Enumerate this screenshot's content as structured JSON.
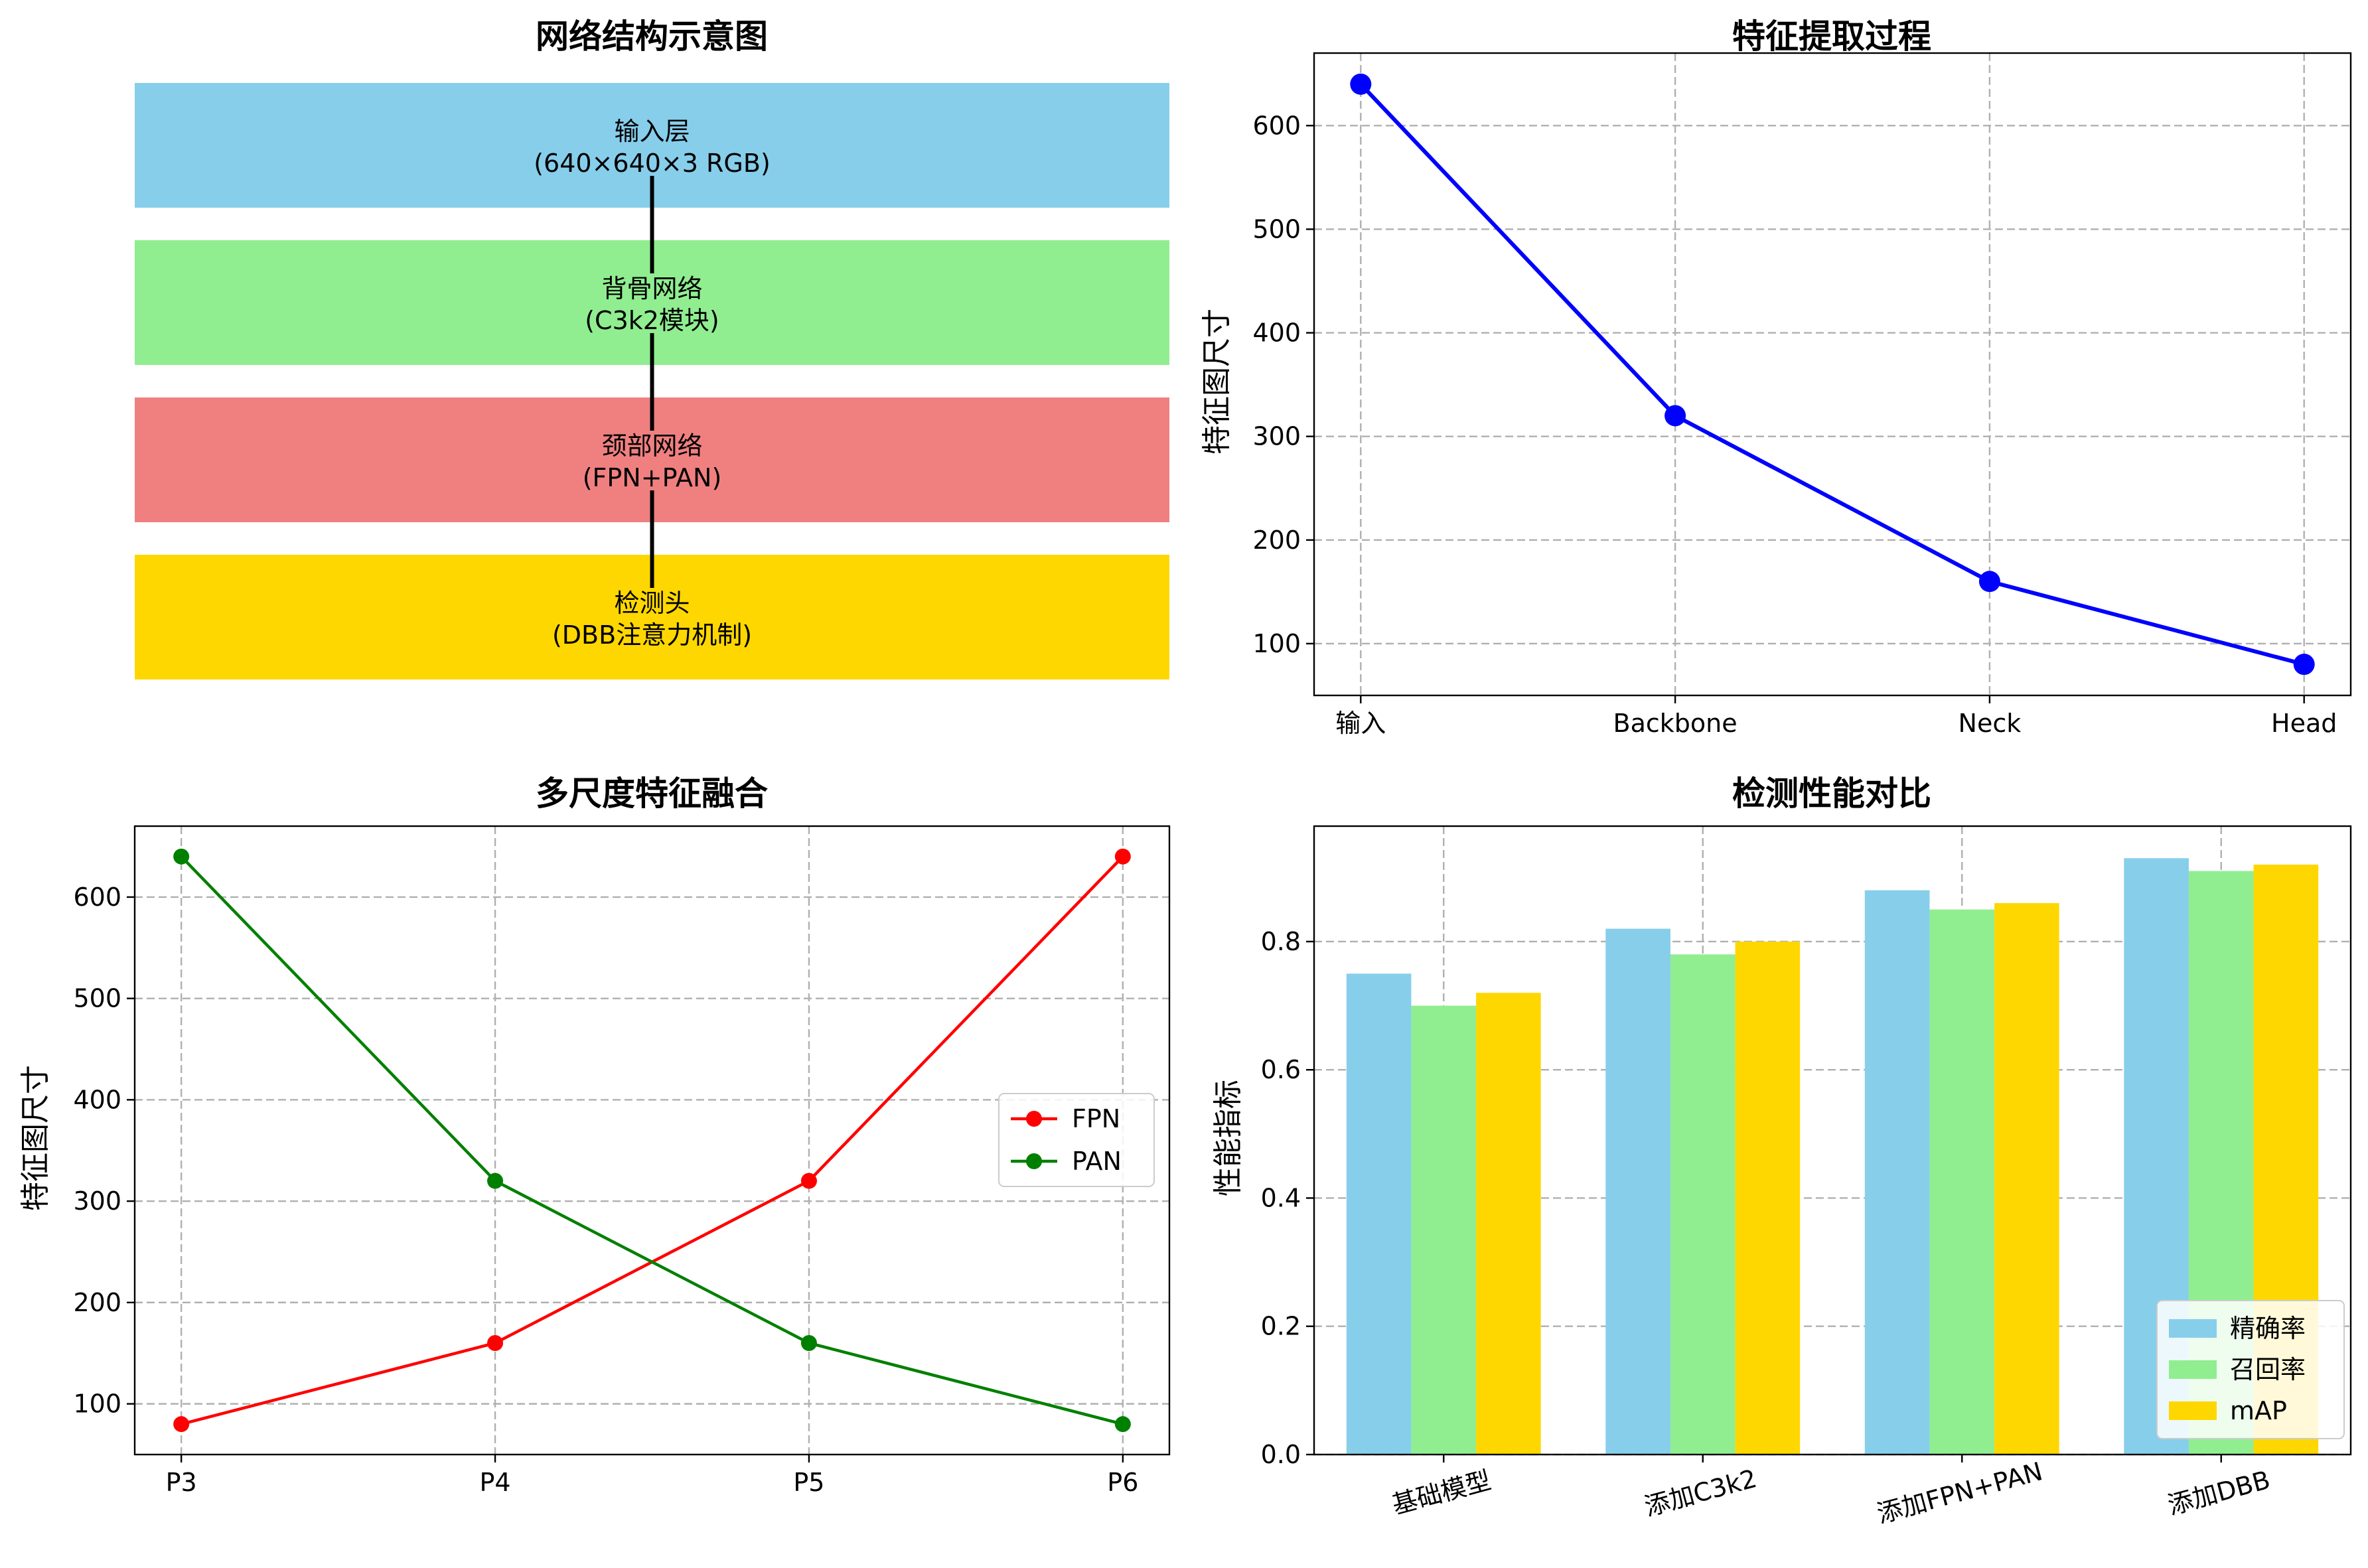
{
  "chart_data": [
    {
      "type": "diagram",
      "title": "网络结构示意图",
      "layers": [
        {
          "line1": "输入层",
          "line2": "(640×640×3 RGB)",
          "color": "#87CEEB"
        },
        {
          "line1": "背骨网络",
          "line2": "(C3k2模块)",
          "color": "#90EE90"
        },
        {
          "line1": "颈部网络",
          "line2": "(FPN+PAN)",
          "color": "#F08080"
        },
        {
          "line1": "检测头",
          "line2": "(DBB注意力机制)",
          "color": "#FFD700"
        }
      ]
    },
    {
      "type": "line",
      "title": "特征提取过程",
      "categories": [
        "输入",
        "Backbone",
        "Neck",
        "Head"
      ],
      "values": [
        640,
        320,
        160,
        80
      ],
      "ylabel": "特征图尺寸",
      "ylim": [
        50,
        670
      ],
      "yticks": [
        100,
        200,
        300,
        400,
        500,
        600
      ],
      "color": "#0000FF",
      "grid": true
    },
    {
      "type": "line",
      "title": "多尺度特征融合",
      "categories": [
        "P3",
        "P4",
        "P5",
        "P6"
      ],
      "series": [
        {
          "name": "FPN",
          "values": [
            80,
            160,
            320,
            640
          ],
          "color": "#FF0000"
        },
        {
          "name": "PAN",
          "values": [
            640,
            320,
            160,
            80
          ],
          "color": "#008000"
        }
      ],
      "ylabel": "特征图尺寸",
      "ylim": [
        50,
        670
      ],
      "yticks": [
        100,
        200,
        300,
        400,
        500,
        600
      ],
      "legend": "center-right",
      "grid": true
    },
    {
      "type": "bar",
      "title": "检测性能对比",
      "categories": [
        "基础模型",
        "添加C3k2",
        "添加FPN+PAN",
        "添加DBB"
      ],
      "series": [
        {
          "name": "精确率",
          "values": [
            0.75,
            0.82,
            0.88,
            0.93
          ],
          "color": "#87CEEB"
        },
        {
          "name": "召回率",
          "values": [
            0.7,
            0.78,
            0.85,
            0.91
          ],
          "color": "#90EE90"
        },
        {
          "name": "mAP",
          "values": [
            0.72,
            0.8,
            0.86,
            0.92
          ],
          "color": "#FFD700"
        }
      ],
      "ylabel": "性能指标",
      "ylim": [
        0,
        0.98
      ],
      "yticks": [
        "0.0",
        "0.2",
        "0.4",
        "0.6",
        "0.8"
      ],
      "legend": "lower-right",
      "grid": true
    }
  ]
}
